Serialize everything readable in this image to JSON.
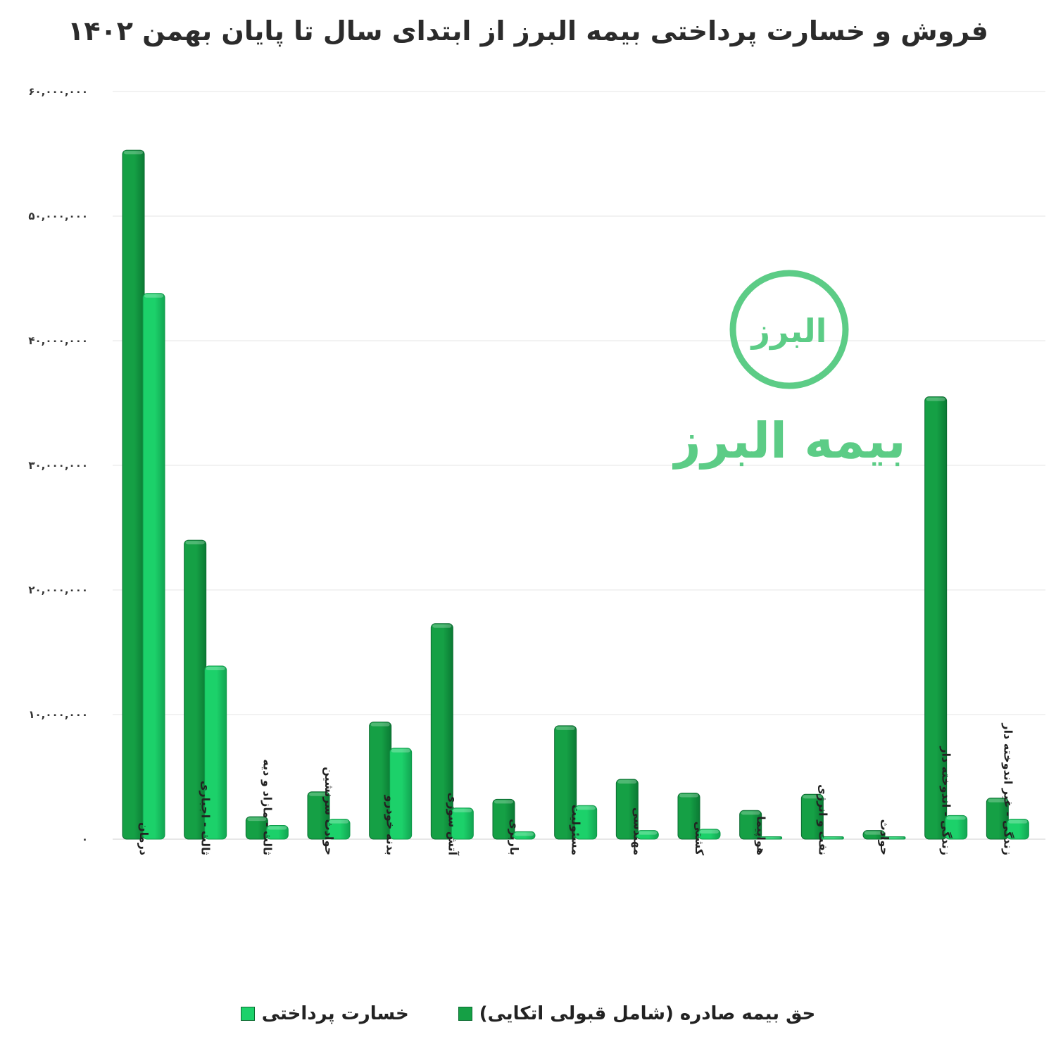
{
  "chart_data": {
    "type": "bar",
    "title": "فروش و خسارت پرداختی بیمه البرز از ابتدای سال تا پایان بهمن ۱۴۰۲",
    "categories": [
      "درمان",
      "ثالث - اجباری",
      "ثالث - مازاد و دیه",
      "حوادث سرنشین",
      "بدنه خودرو",
      "آتش سوزی",
      "باربری",
      "مسئولیت",
      "مهندسی",
      "کشتی",
      "هواپیما",
      "نفت و انرژی",
      "حوادث",
      "زندگی - اندوخته دار",
      "زندگی - غیر اندوخته دار"
    ],
    "series": [
      {
        "name": "حق بیمه صادره (شامل قبولی اتکایی)",
        "color": "#15a045",
        "values": [
          55300000,
          24000000,
          1800000,
          3800000,
          9400000,
          17300000,
          3200000,
          9100000,
          4800000,
          3700000,
          2300000,
          3600000,
          700000,
          35500000,
          3300000
        ]
      },
      {
        "name": "خسارت پرداختی",
        "color": "#1cd16a",
        "values": [
          43800000,
          13900000,
          1100000,
          1600000,
          7300000,
          2500000,
          600000,
          2700000,
          700000,
          800000,
          200000,
          200000,
          200000,
          1900000,
          1600000
        ]
      }
    ],
    "ylim": [
      0,
      60000000
    ],
    "yticks": [
      0,
      10000000,
      20000000,
      30000000,
      40000000,
      50000000,
      60000000
    ],
    "ytick_labels": [
      "۰",
      "۱۰,۰۰۰,۰۰۰",
      "۲۰,۰۰۰,۰۰۰",
      "۳۰,۰۰۰,۰۰۰",
      "۴۰,۰۰۰,۰۰۰",
      "۵۰,۰۰۰,۰۰۰",
      "۶۰,۰۰۰,۰۰۰"
    ],
    "grid": true,
    "legend_position": "bottom"
  },
  "watermark": {
    "badge_text": "البرز",
    "brand_text": "بیمه البرز",
    "color": "#5ccc86"
  }
}
